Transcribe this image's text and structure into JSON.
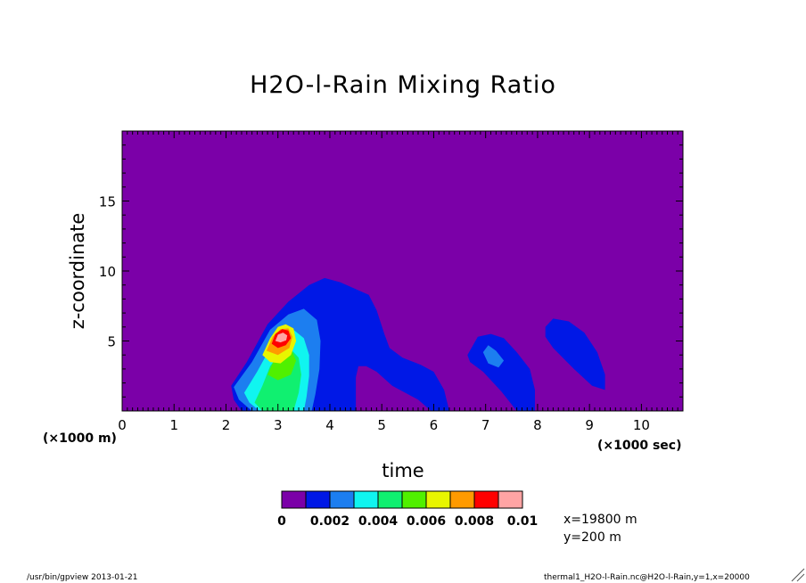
{
  "chart_data": {
    "type": "heatmap",
    "title": "H2O-l-Rain Mixing Ratio",
    "xlabel": "time",
    "ylabel": "z-coordinate",
    "x_unit": "(×1000 sec)",
    "y_unit": "(×1000 m)",
    "xlim": [
      0,
      10.8
    ],
    "ylim": [
      0,
      20
    ],
    "x_ticks": [
      "0",
      "1",
      "2",
      "3",
      "4",
      "5",
      "6",
      "7",
      "8",
      "9",
      "10"
    ],
    "y_ticks": [
      "5",
      "10",
      "15"
    ],
    "colorbar": {
      "levels": [
        0,
        0.001,
        0.002,
        0.003,
        0.004,
        0.005,
        0.006,
        0.007,
        0.008,
        0.009,
        0.01
      ],
      "labels": [
        "0",
        "0.002",
        "0.004",
        "0.006",
        "0.008",
        "0.01"
      ],
      "colors": [
        "#7b00a8",
        "#0018e6",
        "#1c7ef0",
        "#10f5f0",
        "#10f070",
        "#50f000",
        "#e8f500",
        "#ff9a00",
        "#ff0000",
        "#ffa4a4"
      ]
    },
    "regions": [
      {
        "level": 1,
        "points": [
          [
            2.1,
            1.8
          ],
          [
            2.4,
            3.5
          ],
          [
            2.8,
            6.2
          ],
          [
            3.2,
            7.8
          ],
          [
            3.6,
            9.0
          ],
          [
            3.9,
            9.5
          ],
          [
            4.2,
            9.2
          ],
          [
            4.5,
            8.7
          ],
          [
            4.75,
            8.3
          ],
          [
            4.9,
            7.2
          ],
          [
            5.05,
            5.5
          ],
          [
            5.15,
            4.5
          ],
          [
            5.4,
            3.8
          ],
          [
            5.75,
            3.3
          ],
          [
            6.0,
            2.8
          ],
          [
            6.2,
            1.5
          ],
          [
            6.3,
            0
          ],
          [
            5.95,
            0
          ],
          [
            5.7,
            0.8
          ],
          [
            5.2,
            1.8
          ],
          [
            4.9,
            2.8
          ],
          [
            4.7,
            3.2
          ],
          [
            4.55,
            3.2
          ],
          [
            4.5,
            2.4
          ],
          [
            4.5,
            0
          ],
          [
            2.3,
            0
          ],
          [
            2.15,
            0.8
          ]
        ]
      },
      {
        "level": 1,
        "points": [
          [
            6.65,
            4.0
          ],
          [
            6.85,
            5.3
          ],
          [
            7.1,
            5.5
          ],
          [
            7.35,
            5.2
          ],
          [
            7.6,
            4.2
          ],
          [
            7.85,
            3.0
          ],
          [
            7.95,
            1.5
          ],
          [
            7.95,
            0
          ],
          [
            7.6,
            0
          ],
          [
            7.3,
            1.4
          ],
          [
            6.95,
            2.8
          ],
          [
            6.7,
            3.5
          ]
        ]
      },
      {
        "level": 1,
        "points": [
          [
            8.15,
            6.0
          ],
          [
            8.3,
            6.6
          ],
          [
            8.6,
            6.4
          ],
          [
            8.9,
            5.6
          ],
          [
            9.15,
            4.2
          ],
          [
            9.3,
            2.6
          ],
          [
            9.3,
            1.5
          ],
          [
            9.05,
            1.8
          ],
          [
            8.7,
            3.0
          ],
          [
            8.3,
            4.5
          ],
          [
            8.15,
            5.3
          ]
        ]
      },
      {
        "level": 2,
        "points": [
          [
            2.15,
            1.7
          ],
          [
            2.5,
            3.5
          ],
          [
            2.85,
            5.8
          ],
          [
            3.2,
            6.9
          ],
          [
            3.5,
            7.3
          ],
          [
            3.75,
            6.5
          ],
          [
            3.82,
            5.0
          ],
          [
            3.8,
            3.0
          ],
          [
            3.72,
            1.2
          ],
          [
            3.65,
            0
          ],
          [
            2.5,
            0
          ],
          [
            2.25,
            0.8
          ]
        ]
      },
      {
        "level": 2,
        "points": [
          [
            6.95,
            4.2
          ],
          [
            7.05,
            4.7
          ],
          [
            7.2,
            4.3
          ],
          [
            7.35,
            3.6
          ],
          [
            7.25,
            3.1
          ],
          [
            7.05,
            3.4
          ]
        ]
      },
      {
        "level": 3,
        "points": [
          [
            2.35,
            1.3
          ],
          [
            2.6,
            2.8
          ],
          [
            2.85,
            4.5
          ],
          [
            3.1,
            5.6
          ],
          [
            3.3,
            5.8
          ],
          [
            3.5,
            5.2
          ],
          [
            3.6,
            4.0
          ],
          [
            3.6,
            2.5
          ],
          [
            3.55,
            1.0
          ],
          [
            3.5,
            0
          ],
          [
            2.65,
            0
          ],
          [
            2.45,
            0.6
          ]
        ]
      },
      {
        "level": 4,
        "points": [
          [
            2.55,
            0.6
          ],
          [
            2.7,
            1.8
          ],
          [
            2.85,
            3.2
          ],
          [
            3.05,
            4.2
          ],
          [
            3.25,
            4.4
          ],
          [
            3.4,
            3.8
          ],
          [
            3.45,
            2.6
          ],
          [
            3.4,
            1.3
          ],
          [
            3.3,
            0
          ],
          [
            2.7,
            0
          ]
        ]
      },
      {
        "level": 5,
        "points": [
          [
            2.8,
            2.6
          ],
          [
            2.95,
            3.8
          ],
          [
            3.1,
            4.5
          ],
          [
            3.25,
            4.4
          ],
          [
            3.35,
            3.6
          ],
          [
            3.25,
            2.6
          ],
          [
            3.0,
            2.2
          ]
        ]
      },
      {
        "level": 6,
        "points": [
          [
            2.7,
            4.0
          ],
          [
            2.85,
            5.2
          ],
          [
            3.0,
            6.0
          ],
          [
            3.15,
            6.2
          ],
          [
            3.3,
            5.9
          ],
          [
            3.35,
            5.0
          ],
          [
            3.25,
            4.0
          ],
          [
            3.05,
            3.4
          ],
          [
            2.85,
            3.5
          ]
        ]
      },
      {
        "level": 7,
        "points": [
          [
            2.78,
            4.3
          ],
          [
            2.9,
            5.3
          ],
          [
            3.05,
            5.85
          ],
          [
            3.2,
            5.9
          ],
          [
            3.28,
            5.3
          ],
          [
            3.22,
            4.5
          ],
          [
            3.0,
            4.0
          ]
        ]
      },
      {
        "level": 8,
        "points": [
          [
            2.88,
            4.8
          ],
          [
            2.95,
            5.5
          ],
          [
            3.08,
            5.85
          ],
          [
            3.2,
            5.75
          ],
          [
            3.25,
            5.2
          ],
          [
            3.15,
            4.7
          ],
          [
            3.0,
            4.5
          ]
        ]
      },
      {
        "level": 9,
        "points": [
          [
            2.95,
            5.0
          ],
          [
            3.0,
            5.45
          ],
          [
            3.1,
            5.6
          ],
          [
            3.18,
            5.4
          ],
          [
            3.16,
            5.05
          ],
          [
            3.05,
            4.9
          ]
        ]
      }
    ]
  },
  "annotation": {
    "x_pos": "x=19800  m",
    "y_pos": "y=200  m"
  },
  "footer": {
    "left": "/usr/bin/gpview  2013-01-21",
    "right": "thermal1_H2O-l-Rain.nc@H2O-l-Rain,y=1,x=20000"
  }
}
